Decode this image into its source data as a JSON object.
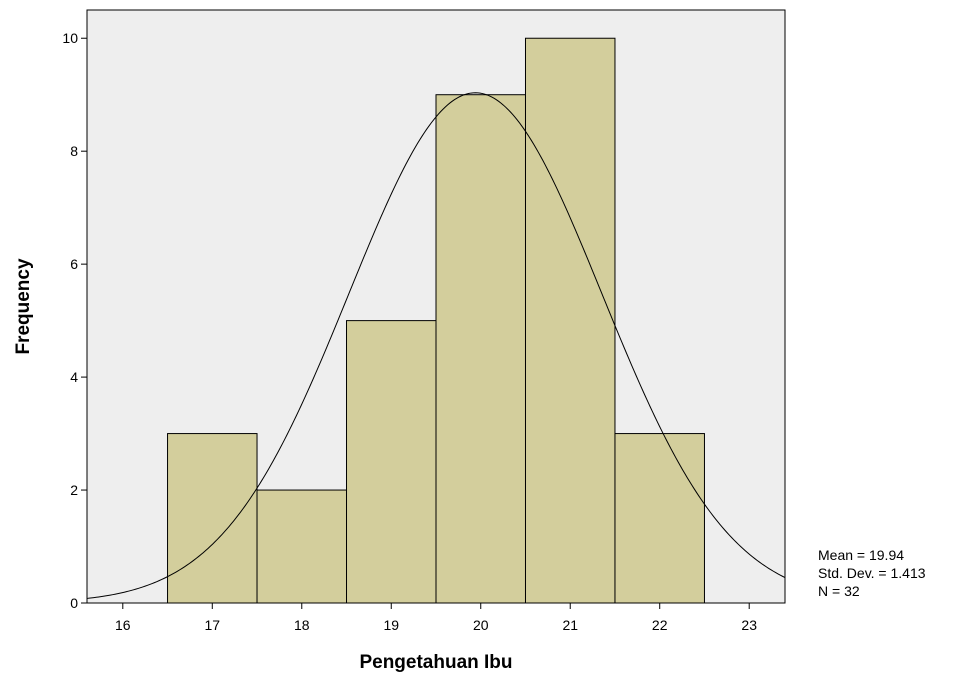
{
  "chart_data": {
    "type": "bar",
    "subtype": "histogram",
    "xlabel": "Pengetahuan Ibu",
    "ylabel": "Frequency",
    "xlim": [
      15.6,
      23.4
    ],
    "ylim": [
      0,
      10.5
    ],
    "x_ticks": [
      16,
      17,
      18,
      19,
      20,
      21,
      22,
      23
    ],
    "y_ticks": [
      0,
      2,
      4,
      6,
      8,
      10
    ],
    "bins": [
      {
        "center": 17,
        "value": 3
      },
      {
        "center": 18,
        "value": 2
      },
      {
        "center": 19,
        "value": 5
      },
      {
        "center": 20,
        "value": 9
      },
      {
        "center": 21,
        "value": 10
      },
      {
        "center": 22,
        "value": 3
      }
    ],
    "bin_width": 1,
    "normal_curve": {
      "mean": 19.94,
      "std_dev": 1.413,
      "n": 32
    },
    "stats": {
      "mean_label": "Mean = 19.94",
      "std_label": "Std. Dev. = 1.413",
      "n_label": "N = 32"
    },
    "grid": false,
    "colors": {
      "plot_background": "#eeeeee",
      "bar_fill": "#d3ce9c",
      "bar_stroke": "#000000",
      "curve": "#000000"
    }
  }
}
